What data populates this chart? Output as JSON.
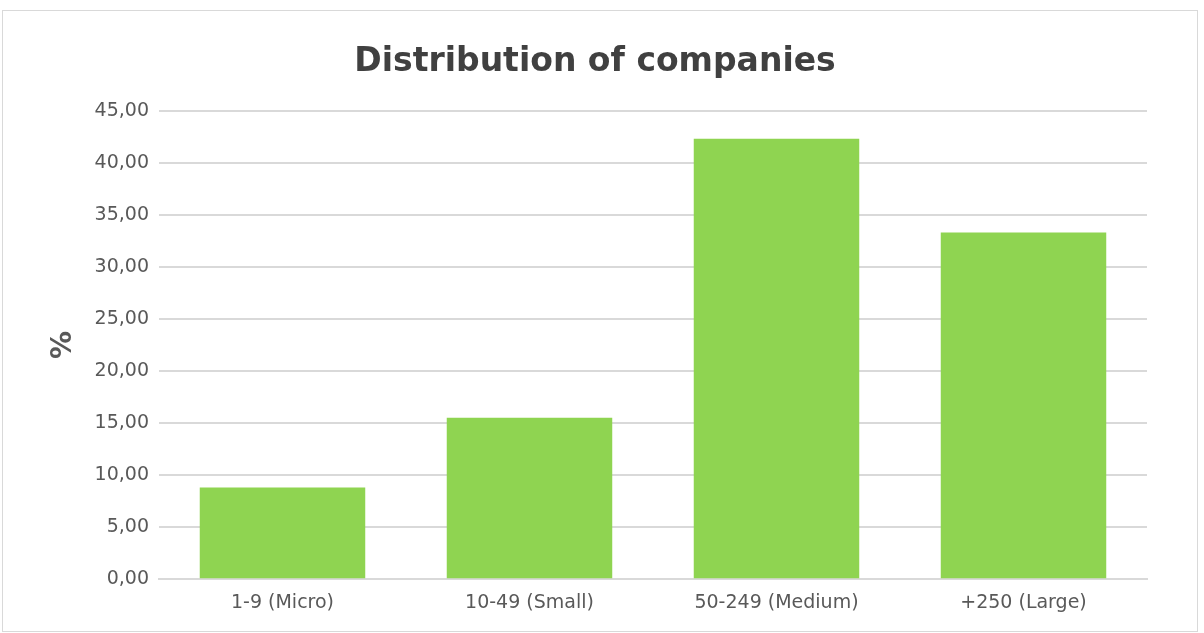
{
  "chart_data": {
    "type": "bar",
    "title": "Distribution of companies",
    "ylabel": "%",
    "categories": [
      "1-9 (Micro)",
      "10-49 (Small)",
      "50-249 (Medium)",
      "+250 (Large)"
    ],
    "values": [
      8.8,
      15.5,
      42.3,
      33.3
    ],
    "color": "#8fd451",
    "ylim": [
      0,
      45
    ],
    "yticks": [
      {
        "value": 0,
        "label": "0,00"
      },
      {
        "value": 5,
        "label": "5,00"
      },
      {
        "value": 10,
        "label": "10,00"
      },
      {
        "value": 15,
        "label": "15,00"
      },
      {
        "value": 20,
        "label": "20,00"
      },
      {
        "value": 25,
        "label": "25,00"
      },
      {
        "value": 30,
        "label": "30,00"
      },
      {
        "value": 35,
        "label": "35,00"
      },
      {
        "value": 40,
        "label": "40,00"
      },
      {
        "value": 45,
        "label": "45,00"
      }
    ],
    "grid": "y"
  }
}
